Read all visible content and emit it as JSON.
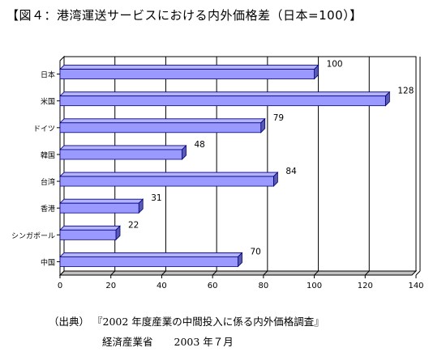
{
  "page": {
    "title": "【図４：港湾運送サービスにおける内外価格差（日本=100）】",
    "source_label": "（出典）",
    "source_title": "『2002 年度産業の中間投入に係る内外価格調査』",
    "source_org": "経済産業省",
    "source_date": "2003 年７月"
  },
  "chart_data": {
    "type": "bar",
    "orientation": "horizontal",
    "categories": [
      "日本",
      "米国",
      "ドイツ",
      "韓国",
      "台湾",
      "香港",
      "シンガポール",
      "中国"
    ],
    "values": [
      100,
      128,
      79,
      48,
      84,
      31,
      22,
      70
    ],
    "data_labels": [
      "100",
      "128",
      "79",
      "48",
      "84",
      "31",
      "22",
      "70"
    ],
    "xlim": [
      0,
      140
    ],
    "xticks": [
      0,
      20,
      40,
      60,
      80,
      100,
      120,
      140
    ],
    "grid": true,
    "legend": "none",
    "bar_color": "#9999ff",
    "bar_edge_color": "#000080",
    "style": "3d"
  }
}
